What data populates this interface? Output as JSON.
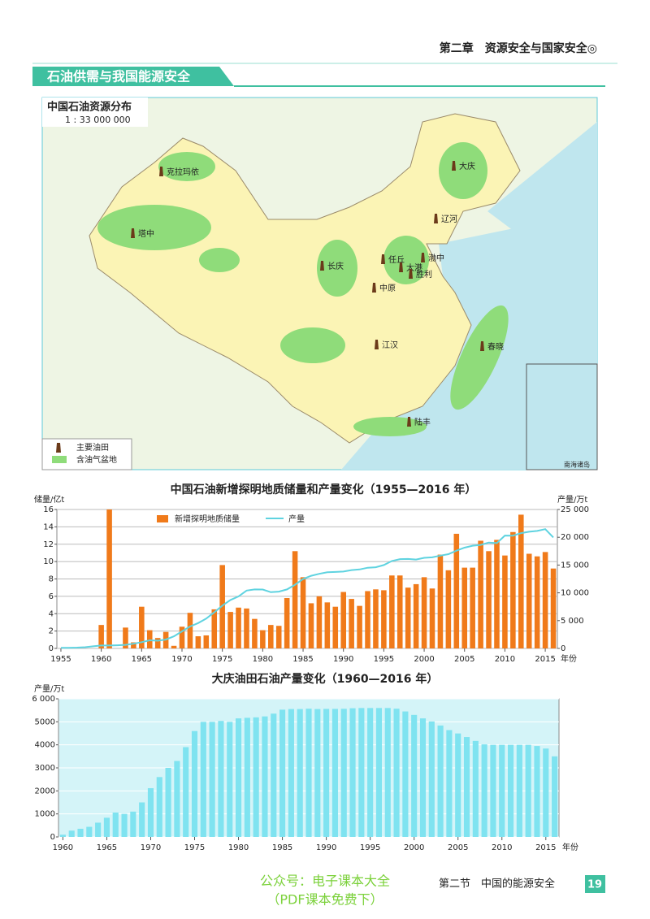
{
  "header": {
    "chapter": "第二章　资源安全与国家安全◎",
    "section_banner": "石油供需与我国能源安全"
  },
  "map": {
    "title": "中国石油资源分布",
    "scale": "1 : 33 000 000",
    "oilfields": [
      "克拉玛依",
      "塔中",
      "大庆",
      "辽河",
      "任丘",
      "大港",
      "渤中",
      "胜利",
      "中原",
      "长庆",
      "江汉",
      "春晓",
      "陆丰"
    ],
    "legend": [
      "主要油田",
      "含油气盆地"
    ],
    "inset": "南海诸岛"
  },
  "chart_data": [
    {
      "type": "combo",
      "title": "中国石油新增探明地质储量和产量变化（1955—2016 年）",
      "y_label": "储量/亿t",
      "y2_label": "产量/万t",
      "x_label": "年份",
      "x": [
        1955,
        1956,
        1957,
        1958,
        1959,
        1960,
        1961,
        1962,
        1963,
        1964,
        1965,
        1966,
        1967,
        1968,
        1969,
        1970,
        1971,
        1972,
        1973,
        1974,
        1975,
        1976,
        1977,
        1978,
        1979,
        1980,
        1981,
        1982,
        1983,
        1984,
        1985,
        1986,
        1987,
        1988,
        1989,
        1990,
        1991,
        1992,
        1993,
        1994,
        1995,
        1996,
        1997,
        1998,
        1999,
        2000,
        2001,
        2002,
        2003,
        2004,
        2005,
        2006,
        2007,
        2008,
        2009,
        2010,
        2011,
        2012,
        2013,
        2014,
        2015,
        2016
      ],
      "series": [
        {
          "name": "新增探明地质储量",
          "type": "bar",
          "color": "#f07a1a",
          "values": [
            0,
            0,
            0,
            0,
            0,
            2.7,
            16,
            0,
            2.4,
            0.7,
            4.8,
            2.1,
            1.2,
            1.9,
            0.3,
            2.5,
            4.1,
            1.4,
            1.5,
            4.5,
            9.6,
            4.2,
            4.7,
            4.6,
            3.4,
            2.1,
            2.7,
            2.6,
            5.8,
            11.2,
            8.2,
            5.2,
            6.0,
            5.3,
            4.8,
            6.5,
            5.7,
            4.9,
            6.6,
            6.8,
            6.7,
            8.4,
            8.4,
            7.0,
            7.4,
            8.2,
            6.9,
            10.8,
            9.0,
            13.2,
            9.3,
            9.3,
            12.4,
            11.2,
            12.5,
            10.7,
            13.4,
            15.4,
            10.9,
            10.6,
            11.1,
            9.2
          ]
        },
        {
          "name": "产量",
          "type": "line",
          "axis": "y2",
          "color": "#5fd3e0",
          "values": [
            97,
            116,
            146,
            226,
            373,
            520,
            531,
            575,
            648,
            848,
            1131,
            1455,
            1388,
            1599,
            2174,
            3065,
            3941,
            4567,
            5361,
            6485,
            7706,
            8716,
            9364,
            10405,
            10615,
            10595,
            10122,
            10212,
            10607,
            11461,
            12490,
            13069,
            13414,
            13705,
            13764,
            13831,
            14099,
            14210,
            14524,
            14608,
            15005,
            15733,
            16074,
            16100,
            16000,
            16300,
            16396,
            16700,
            16960,
            17587,
            18135,
            18477,
            18632,
            19044,
            18949,
            20301,
            20288,
            20748,
            20992,
            21143,
            21456,
            19969
          ]
        }
      ],
      "xlim": [
        1954.5,
        2016.5
      ],
      "xticks": [
        1955,
        1960,
        1965,
        1970,
        1975,
        1980,
        1985,
        1990,
        1995,
        2000,
        2005,
        2010,
        2015
      ],
      "ylim": [
        0,
        16
      ],
      "yticks": [
        0,
        2,
        4,
        6,
        8,
        10,
        12,
        14,
        16
      ],
      "y2lim": [
        0,
        25000
      ],
      "y2ticks": [
        0,
        {
          "value": 5000,
          "label": "5 000"
        },
        {
          "value": 10000,
          "label": "10 000"
        },
        {
          "value": 15000,
          "label": "15 000"
        },
        {
          "value": 20000,
          "label": "20 000"
        },
        {
          "value": 25000,
          "label": "25 000"
        }
      ],
      "grid": true
    },
    {
      "type": "bar",
      "title": "大庆油田石油产量变化（1960—2016 年）",
      "y_label": "产量/万t",
      "x_label": "年份",
      "x": [
        1960,
        1961,
        1962,
        1963,
        1964,
        1965,
        1966,
        1967,
        1968,
        1969,
        1970,
        1971,
        1972,
        1973,
        1974,
        1975,
        1976,
        1977,
        1978,
        1979,
        1980,
        1981,
        1982,
        1983,
        1984,
        1985,
        1986,
        1987,
        1988,
        1989,
        1990,
        1991,
        1992,
        1993,
        1994,
        1995,
        1996,
        1997,
        1998,
        1999,
        2000,
        2001,
        2002,
        2003,
        2004,
        2005,
        2006,
        2007,
        2008,
        2009,
        2010,
        2011,
        2012,
        2013,
        2014,
        2015,
        2016
      ],
      "series": [
        {
          "type": "bar",
          "color": "#7fe3f0",
          "values": [
            97,
            274,
            355,
            439,
            620,
            834,
            1060,
            1000,
            1100,
            1500,
            2118,
            2600,
            3000,
            3300,
            3900,
            4600,
            5000,
            5000,
            5037,
            5000,
            5150,
            5175,
            5194,
            5235,
            5356,
            5528,
            5555,
            5555,
            5570,
            5555,
            5562,
            5562,
            5565,
            5590,
            5600,
            5600,
            5601,
            5600,
            5570,
            5450,
            5300,
            5150,
            5013,
            4840,
            4640,
            4495,
            4340,
            4170,
            4020,
            4000,
            4000,
            4000,
            4000,
            4000,
            3950,
            3840,
            3500
          ]
        }
      ],
      "xlim": [
        1959.5,
        2016.5
      ],
      "xticks": [
        1960,
        1965,
        1970,
        1975,
        1980,
        1985,
        1990,
        1995,
        2000,
        2005,
        2010,
        2015
      ],
      "ylim": [
        0,
        6000
      ],
      "yticks": [
        0,
        {
          "value": 1000,
          "label": "1000"
        },
        {
          "value": 2000,
          "label": "2000"
        },
        {
          "value": 3000,
          "label": "3000"
        },
        {
          "value": 4000,
          "label": "4000"
        },
        {
          "value": 5000,
          "label": "5000"
        },
        {
          "value": 6000,
          "label": "6 000"
        }
      ],
      "grid": true
    }
  ],
  "footer": {
    "section": "第二节　中国的能源安全",
    "page": "19",
    "watermark": [
      "公众号：电子课本大全",
      "（PDF课本免费下）"
    ]
  }
}
